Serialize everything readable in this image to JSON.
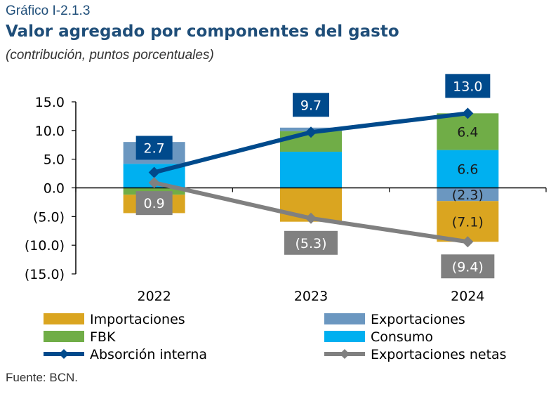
{
  "header": {
    "kicker": "Gráfico I-2.1.3",
    "title": "Valor agregado por componentes del gasto",
    "subtitle": "(contribución, puntos porcentuales)"
  },
  "source": "Fuente: BCN.",
  "chart_data": {
    "type": "bar",
    "stacked": true,
    "categories": [
      "2022",
      "2023",
      "2024"
    ],
    "ylim": [
      -15,
      15
    ],
    "yticks": [
      15,
      10,
      5,
      0,
      -5,
      -10,
      -15
    ],
    "ytick_labels": [
      "15.0",
      "10.0",
      "5.0",
      "0.0",
      "(5.0)",
      "(10.0)",
      "(15.0)"
    ],
    "bar_series": [
      {
        "name": "Consumo",
        "color": "#00b0f0",
        "values": [
          4.2,
          6.3,
          6.6
        ],
        "labels": [
          null,
          null,
          "6.6"
        ]
      },
      {
        "name": "FBK",
        "color": "#70ad47",
        "values": [
          -1.2,
          3.6,
          6.4
        ],
        "labels": [
          null,
          null,
          "6.4"
        ]
      },
      {
        "name": "Exportaciones",
        "color": "#6b97c0",
        "values": [
          3.8,
          0.6,
          -2.3
        ],
        "labels": [
          null,
          null,
          "(2.3)"
        ]
      },
      {
        "name": "Importaciones",
        "color": "#daa520",
        "values": [
          -3.2,
          -5.9,
          -7.1
        ],
        "labels": [
          null,
          null,
          "(7.1)"
        ]
      }
    ],
    "line_series": [
      {
        "name": "Absorción interna",
        "color": "#004a8c",
        "values": [
          2.7,
          9.7,
          13.0
        ],
        "labels": [
          "2.7",
          "9.7",
          "13.0"
        ]
      },
      {
        "name": "Exportaciones netas",
        "color": "#808080",
        "values": [
          0.9,
          -5.3,
          -9.4
        ],
        "labels": [
          "0.9",
          "(5.3)",
          "(9.4)"
        ]
      }
    ],
    "legend": [
      {
        "name": "Importaciones",
        "kind": "bar",
        "color": "#daa520"
      },
      {
        "name": "Exportaciones",
        "kind": "bar",
        "color": "#6b97c0"
      },
      {
        "name": "FBK",
        "kind": "bar",
        "color": "#70ad47"
      },
      {
        "name": "Consumo",
        "kind": "bar",
        "color": "#00b0f0"
      },
      {
        "name": "Absorción interna",
        "kind": "line",
        "color": "#004a8c"
      },
      {
        "name": "Exportaciones netas",
        "kind": "line",
        "color": "#808080"
      }
    ],
    "legend_position": "bottom",
    "grid": false
  }
}
